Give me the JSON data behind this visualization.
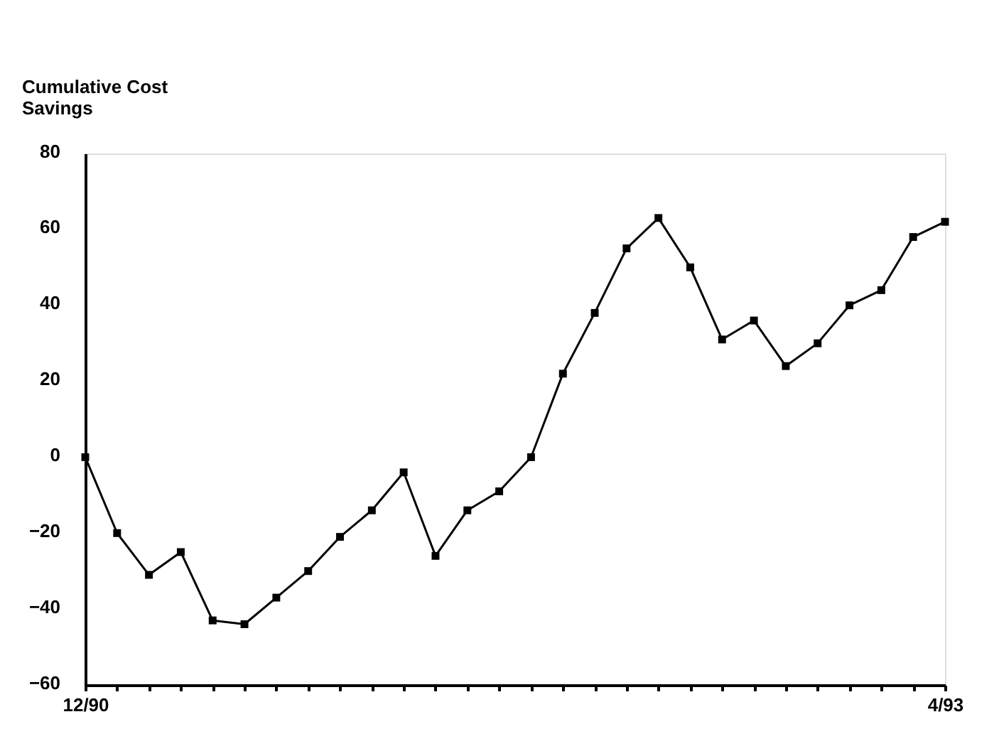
{
  "chart_data": {
    "type": "line",
    "ylabel": "Cumulative Cost Savings",
    "categories": [
      "12/90",
      null,
      null,
      null,
      null,
      null,
      null,
      null,
      null,
      null,
      null,
      null,
      null,
      null,
      null,
      null,
      null,
      null,
      null,
      null,
      null,
      null,
      null,
      null,
      null,
      null,
      null,
      "4/93"
    ],
    "series": [
      {
        "color": "#000000",
        "values": [
          0,
          -20,
          -31,
          -25,
          -43,
          -44,
          -37,
          -30,
          -21,
          -14,
          -4,
          -26,
          -14,
          -9,
          0,
          22,
          38,
          55,
          63,
          50,
          31,
          36,
          24,
          30,
          40,
          44,
          58,
          62
        ]
      }
    ],
    "ylim": [
      -60,
      80
    ],
    "yticks": [
      -60,
      -40,
      -20,
      0,
      20,
      40,
      60,
      80
    ],
    "grid": false,
    "marker": "square",
    "line_style": "solid"
  }
}
